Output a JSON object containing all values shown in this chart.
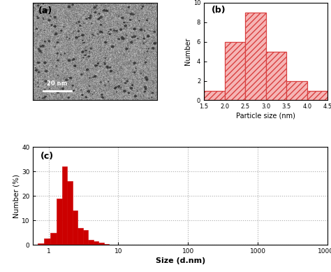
{
  "panel_b": {
    "title": "(b)",
    "bin_edges": [
      1.5,
      2.0,
      2.5,
      3.0,
      3.5,
      4.0,
      4.5
    ],
    "counts": [
      1,
      6,
      9,
      5,
      2,
      1
    ],
    "xlabel": "Particle size (nm)",
    "ylabel": "Number",
    "xlim": [
      1.5,
      4.5
    ],
    "ylim": [
      0,
      10
    ],
    "yticks": [
      0,
      2,
      4,
      6,
      8,
      10
    ],
    "xticks": [
      1.5,
      2.0,
      2.5,
      3.0,
      3.5,
      4.0,
      4.5
    ],
    "bar_edgecolor": "#d94040",
    "hatch": "////",
    "facecolor": "#f5b5b5"
  },
  "panel_c": {
    "title": "(c)",
    "xlabel": "Size (d.nm)",
    "ylabel": "Number (%)",
    "ylim": [
      0,
      40
    ],
    "yticks": [
      0,
      10,
      20,
      30,
      40
    ],
    "bar_color": "#cc0000",
    "grid_color": "#aaaaaa",
    "bin_data": [
      [
        0.7,
        0.85,
        0.5
      ],
      [
        0.85,
        1.05,
        2.5
      ],
      [
        1.05,
        1.3,
        5.0
      ],
      [
        1.3,
        1.55,
        19.0
      ],
      [
        1.55,
        1.85,
        32.0
      ],
      [
        1.85,
        2.2,
        26.0
      ],
      [
        2.2,
        2.6,
        14.0
      ],
      [
        2.6,
        3.1,
        7.0
      ],
      [
        3.1,
        3.7,
        6.0
      ],
      [
        3.7,
        4.4,
        2.0
      ],
      [
        4.4,
        5.2,
        1.5
      ],
      [
        5.2,
        6.2,
        0.8
      ],
      [
        6.2,
        7.4,
        0.3
      ]
    ]
  },
  "panel_a": {
    "title": "(a)",
    "scalebar_text": "20 nm"
  }
}
